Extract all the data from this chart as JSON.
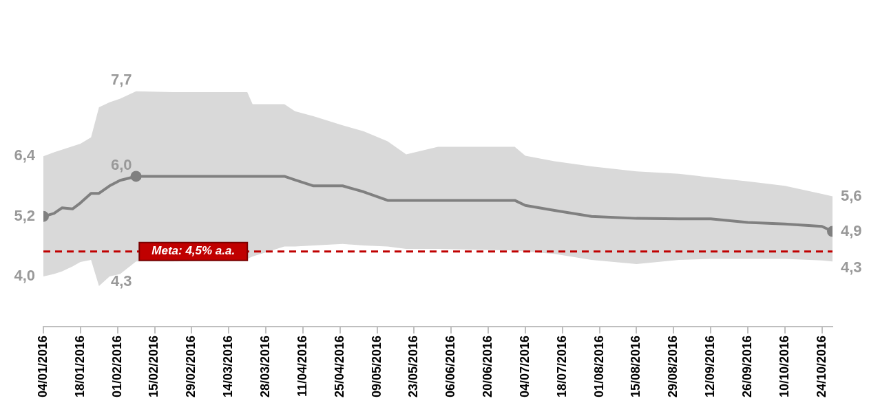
{
  "chart_data": {
    "type": "line",
    "x": [
      "2016-01-04",
      "2016-01-08",
      "2016-01-11",
      "2016-01-15",
      "2016-01-18",
      "2016-01-22",
      "2016-01-25",
      "2016-01-29",
      "2016-02-02",
      "2016-02-08",
      "2016-02-22",
      "2016-03-21",
      "2016-03-23",
      "2016-04-04",
      "2016-04-08",
      "2016-04-15",
      "2016-04-26",
      "2016-05-04",
      "2016-05-13",
      "2016-05-20",
      "2016-06-01",
      "2016-06-30",
      "2016-07-04",
      "2016-07-15",
      "2016-07-29",
      "2016-08-15",
      "2016-08-31",
      "2016-09-12",
      "2016-09-26",
      "2016-10-10",
      "2016-10-24",
      "2016-10-28"
    ],
    "series": [
      {
        "color": "#808080",
        "line_style": "solid",
        "values": [
          5.2,
          5.26,
          5.37,
          5.35,
          5.47,
          5.66,
          5.66,
          5.81,
          5.92,
          6.0,
          6.0,
          6.0,
          6.0,
          6.0,
          5.93,
          5.81,
          5.81,
          5.69,
          5.52,
          5.52,
          5.52,
          5.52,
          5.42,
          5.32,
          5.2,
          5.16,
          5.15,
          5.15,
          5.08,
          5.05,
          5.0,
          4.9
        ],
        "upper": [
          6.4,
          6.48,
          6.53,
          6.6,
          6.65,
          6.78,
          7.38,
          7.48,
          7.55,
          7.7,
          7.68,
          7.68,
          7.44,
          7.44,
          7.3,
          7.2,
          7.02,
          6.9,
          6.7,
          6.44,
          6.59,
          6.59,
          6.41,
          6.3,
          6.2,
          6.1,
          6.05,
          5.98,
          5.9,
          5.81,
          5.65,
          5.6
        ],
        "lower": [
          4.0,
          4.05,
          4.1,
          4.2,
          4.29,
          4.33,
          3.81,
          4.0,
          4.05,
          4.3,
          4.3,
          4.35,
          4.4,
          4.6,
          4.6,
          4.62,
          4.65,
          4.62,
          4.6,
          4.55,
          4.55,
          4.52,
          4.5,
          4.45,
          4.33,
          4.25,
          4.33,
          4.35,
          4.35,
          4.35,
          4.32,
          4.3
        ],
        "value_labels": [
          "5,2",
          null,
          null,
          null,
          null,
          null,
          null,
          null,
          null,
          "6,0",
          null,
          null,
          null,
          null,
          null,
          null,
          null,
          null,
          null,
          null,
          null,
          null,
          null,
          null,
          null,
          null,
          null,
          null,
          null,
          null,
          null,
          "4,9"
        ]
      }
    ],
    "annotations": [
      {
        "text": "6,4",
        "x": "2016-01-04",
        "y": 6.4
      },
      {
        "text": "4,0",
        "x": "2016-01-04",
        "y": 4.0
      },
      {
        "text": "7,7",
        "x": "2016-02-08",
        "y": 7.7
      },
      {
        "text": "4,3",
        "x": "2016-02-08",
        "y": 4.3
      },
      {
        "text": "5,6",
        "x": "2016-10-28",
        "y": 5.6
      },
      {
        "text": "4,3",
        "x": "2016-10-28",
        "y": 4.3
      }
    ],
    "ref_lines": [
      {
        "axis": "y",
        "value": 4.5,
        "label": "Meta: 4,5% a.a.",
        "color": "#c00000",
        "line_style": "dashed"
      }
    ],
    "xlim": [
      "2016-01-04",
      "2016-10-28"
    ],
    "xticks": [
      {
        "value": "2016-01-04",
        "label": "04/01/2016"
      },
      {
        "value": "2016-01-18",
        "label": "18/01/2016"
      },
      {
        "value": "2016-02-01",
        "label": "01/02/2016"
      },
      {
        "value": "2016-02-15",
        "label": "15/02/2016"
      },
      {
        "value": "2016-02-29",
        "label": "29/02/2016"
      },
      {
        "value": "2016-03-14",
        "label": "14/03/2016"
      },
      {
        "value": "2016-03-28",
        "label": "28/03/2016"
      },
      {
        "value": "2016-04-11",
        "label": "11/04/2016"
      },
      {
        "value": "2016-04-25",
        "label": "25/04/2016"
      },
      {
        "value": "2016-05-09",
        "label": "09/05/2016"
      },
      {
        "value": "2016-05-23",
        "label": "23/05/2016"
      },
      {
        "value": "2016-06-06",
        "label": "06/06/2016"
      },
      {
        "value": "2016-06-20",
        "label": "20/06/2016"
      },
      {
        "value": "2016-07-04",
        "label": "04/07/2016"
      },
      {
        "value": "2016-07-18",
        "label": "18/07/2016"
      },
      {
        "value": "2016-08-01",
        "label": "01/08/2016"
      },
      {
        "value": "2016-08-15",
        "label": "15/08/2016"
      },
      {
        "value": "2016-08-29",
        "label": "29/08/2016"
      },
      {
        "value": "2016-09-12",
        "label": "12/09/2016"
      },
      {
        "value": "2016-09-26",
        "label": "26/09/2016"
      },
      {
        "value": "2016-10-10",
        "label": "10/10/2016"
      },
      {
        "value": "2016-10-24",
        "label": "24/10/2016"
      }
    ],
    "tick_labels": "x",
    "grid": false,
    "legend": false
  }
}
